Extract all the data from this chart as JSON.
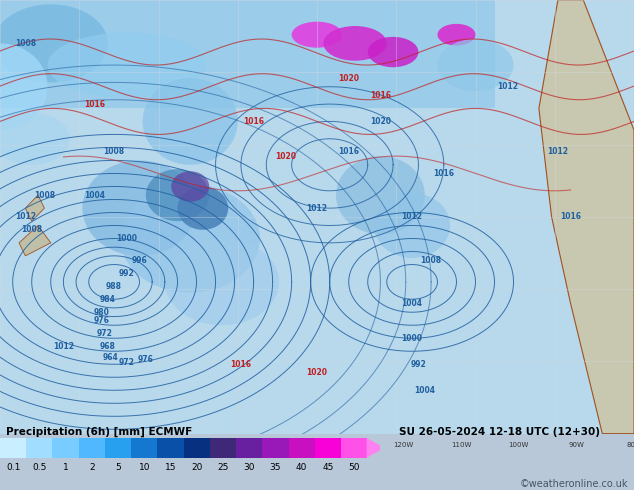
{
  "title_line1": "Precipitation (6h) [mm] ECMWF",
  "title_line2": "SU 26-05-2024 12-18 UTC (12+30)",
  "colorbar_labels": [
    "0.1",
    "0.5",
    "1",
    "2",
    "5",
    "10",
    "15",
    "20",
    "25",
    "30",
    "35",
    "40",
    "45",
    "50"
  ],
  "colorbar_colors": [
    "#c8eeff",
    "#a0ddff",
    "#78ccff",
    "#50b8ff",
    "#28a0f0",
    "#1478d0",
    "#0850a8",
    "#083080",
    "#402878",
    "#6820a0",
    "#9818b8",
    "#c810c0",
    "#f800d8",
    "#ff50e8"
  ],
  "arrow_color": "#ff80f0",
  "background_color": "#b8c8d8",
  "map_bg_color": "#c0d0dc",
  "land_color": "#c8c8b8",
  "sea_color": "#a8c8e0",
  "grid_color": "#d0d8e0",
  "isobar_color_blue": "#2060a0",
  "isobar_color_red": "#c02020",
  "precip_light_cyan": "#b0dcf0",
  "precip_mid_blue": "#6090c8",
  "precip_dark_blue": "#203878",
  "precip_purple": "#6020a0",
  "precip_magenta": "#d010c8",
  "credit": "©weatheronline.co.uk",
  "fig_width": 6.34,
  "fig_height": 4.9,
  "dpi": 100
}
